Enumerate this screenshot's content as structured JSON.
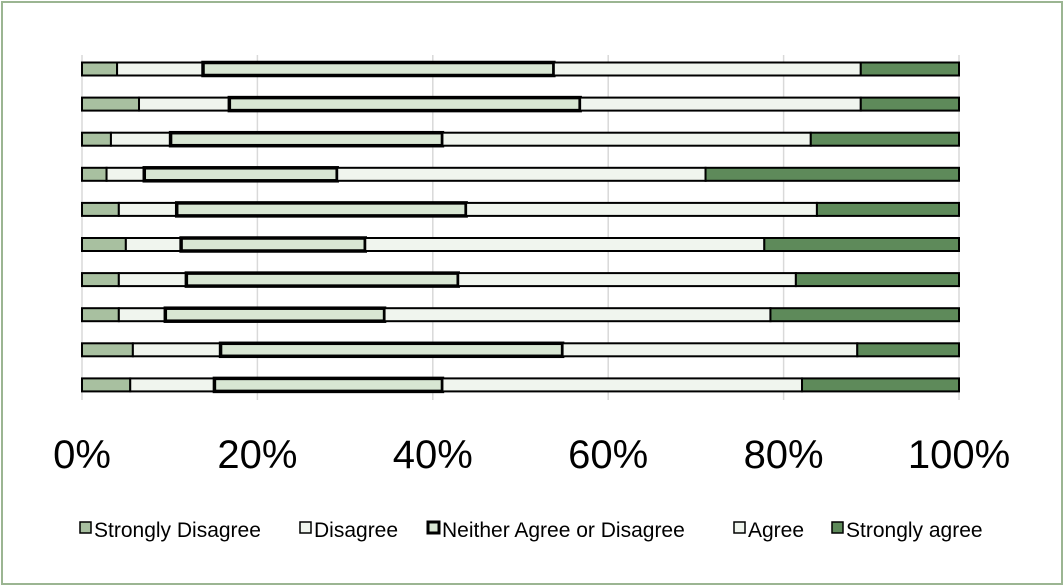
{
  "chart_data": {
    "type": "bar",
    "orientation": "horizontal",
    "stacking": "100%",
    "title": "",
    "xlabel": "",
    "ylabel": "",
    "xlim": [
      0,
      100
    ],
    "x_ticks": [
      "0%",
      "20%",
      "40%",
      "60%",
      "80%",
      "100%"
    ],
    "x_tick_values": [
      0,
      20,
      40,
      60,
      80,
      100
    ],
    "grid": "vertical",
    "legend_position": "bottom",
    "categories": [
      "",
      "",
      "",
      "",
      "",
      "",
      "",
      "",
      "",
      ""
    ],
    "series": [
      {
        "name": "Strongly Disagree",
        "color": "#a8c0a0",
        "values": [
          4.0,
          6.5,
          3.3,
          2.8,
          4.2,
          5.0,
          4.2,
          4.2,
          5.8,
          5.5
        ]
      },
      {
        "name": "Disagree",
        "color": "#f0f5ee",
        "values": [
          9.8,
          10.3,
          6.8,
          4.3,
          6.6,
          6.3,
          7.7,
          5.3,
          10.0,
          9.6
        ]
      },
      {
        "name": "Neither Agree or Disagree",
        "color": "#d8e6d3",
        "values": [
          40.0,
          40.0,
          31.0,
          22.0,
          33.0,
          21.0,
          31.0,
          25.0,
          39.0,
          26.0
        ]
      },
      {
        "name": "Agree",
        "color": "#f0f5ee",
        "values": [
          35.0,
          32.0,
          42.0,
          42.0,
          40.0,
          45.5,
          38.5,
          44.0,
          33.6,
          41.0
        ]
      },
      {
        "name": "Strongly agree",
        "color": "#5e8a5a",
        "values": [
          11.2,
          11.2,
          16.9,
          28.9,
          16.2,
          22.2,
          18.6,
          21.5,
          11.6,
          17.9
        ]
      }
    ]
  }
}
